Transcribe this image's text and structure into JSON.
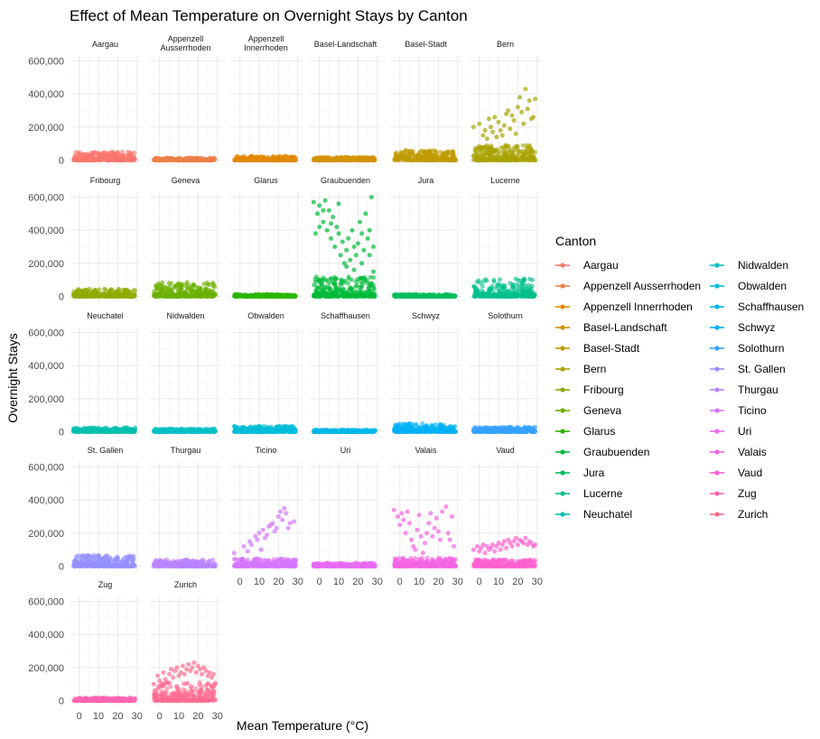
{
  "chart_data": {
    "type": "scatter",
    "title": "Effect of Mean Temperature on Overnight Stays by Canton",
    "xlabel": "Mean Temperature (°C)",
    "ylabel": "Overnight Stays",
    "xlim": [
      -5,
      32
    ],
    "ylim": [
      -30000,
      630000
    ],
    "x_ticks": [
      0,
      10,
      20,
      30
    ],
    "y_ticks": [
      0,
      200000,
      400000,
      600000
    ],
    "y_tick_labels": [
      "0",
      "200,000",
      "400,000",
      "600,000"
    ],
    "grid": true,
    "legend": {
      "title": "Canton",
      "position": "right",
      "columns": 2
    },
    "facets": [
      {
        "name": "Aargau",
        "label": [
          "Aargau"
        ],
        "color": "#F8766D",
        "base_max": 50000,
        "high": []
      },
      {
        "name": "Appenzell Ausserrhoden",
        "label": [
          "Appenzell",
          "Ausserrhoden"
        ],
        "color": "#EF7F47",
        "base_max": 15000,
        "high": []
      },
      {
        "name": "Appenzell Innerrhoden",
        "label": [
          "Appenzell",
          "Innerrhoden"
        ],
        "color": "#E38900",
        "base_max": 25000,
        "high": []
      },
      {
        "name": "Basel-Landschaft",
        "label": [
          "Basel-Landschaft"
        ],
        "color": "#D39200",
        "base_max": 18000,
        "high": []
      },
      {
        "name": "Basel-Stadt",
        "label": [
          "Basel-Stadt"
        ],
        "color": "#C09B00",
        "base_max": 60000,
        "high": []
      },
      {
        "name": "Bern",
        "label": [
          "Bern"
        ],
        "color": "#A9A400",
        "base_max": 90000,
        "high": [
          [
            -3,
            200000
          ],
          [
            0,
            220000
          ],
          [
            3,
            180000
          ],
          [
            5,
            250000
          ],
          [
            8,
            260000
          ],
          [
            10,
            230000
          ],
          [
            12,
            150000
          ],
          [
            14,
            280000
          ],
          [
            15,
            300000
          ],
          [
            17,
            270000
          ],
          [
            18,
            240000
          ],
          [
            20,
            320000
          ],
          [
            21,
            380000
          ],
          [
            22,
            290000
          ],
          [
            24,
            430000
          ],
          [
            25,
            310000
          ],
          [
            26,
            360000
          ],
          [
            28,
            260000
          ],
          [
            29,
            370000
          ],
          [
            2,
            150000
          ],
          [
            6,
            200000
          ],
          [
            9,
            140000
          ],
          [
            13,
            210000
          ],
          [
            16,
            190000
          ],
          [
            19,
            160000
          ],
          [
            23,
            220000
          ],
          [
            27,
            250000
          ],
          [
            11,
            180000
          ],
          [
            7,
            170000
          ],
          [
            4,
            130000
          ]
        ]
      },
      {
        "name": "Fribourg",
        "label": [
          "Fribourg"
        ],
        "color": "#8EAB00",
        "base_max": 45000,
        "high": []
      },
      {
        "name": "Geneva",
        "label": [
          "Geneva"
        ],
        "color": "#6BB100",
        "base_max": 85000,
        "high": []
      },
      {
        "name": "Glarus",
        "label": [
          "Glarus"
        ],
        "color": "#2AB600",
        "base_max": 12000,
        "high": []
      },
      {
        "name": "Graubuenden",
        "label": [
          "Graubuenden"
        ],
        "color": "#00BA38",
        "base_max": 120000,
        "high": [
          [
            -3,
            570000
          ],
          [
            -1,
            500000
          ],
          [
            0,
            550000
          ],
          [
            2,
            450000
          ],
          [
            3,
            580000
          ],
          [
            4,
            400000
          ],
          [
            5,
            520000
          ],
          [
            6,
            350000
          ],
          [
            7,
            480000
          ],
          [
            8,
            300000
          ],
          [
            9,
            420000
          ],
          [
            10,
            380000
          ],
          [
            11,
            250000
          ],
          [
            12,
            330000
          ],
          [
            13,
            200000
          ],
          [
            14,
            280000
          ],
          [
            15,
            350000
          ],
          [
            16,
            220000
          ],
          [
            17,
            400000
          ],
          [
            18,
            300000
          ],
          [
            19,
            250000
          ],
          [
            20,
            320000
          ],
          [
            21,
            450000
          ],
          [
            22,
            380000
          ],
          [
            23,
            280000
          ],
          [
            24,
            500000
          ],
          [
            25,
            350000
          ],
          [
            26,
            400000
          ],
          [
            27,
            600000
          ],
          [
            28,
            300000
          ],
          [
            0,
            420000
          ],
          [
            -2,
            380000
          ],
          [
            2,
            520000
          ],
          [
            6,
            440000
          ],
          [
            10,
            560000
          ],
          [
            14,
            180000
          ],
          [
            18,
            160000
          ],
          [
            22,
            200000
          ],
          [
            26,
            250000
          ],
          [
            28,
            150000
          ]
        ]
      },
      {
        "name": "Jura",
        "label": [
          "Jura"
        ],
        "color": "#00BD5C",
        "base_max": 12000,
        "high": []
      },
      {
        "name": "Lucerne",
        "label": [
          "Lucerne"
        ],
        "color": "#00BF8C",
        "base_max": 110000,
        "high": []
      },
      {
        "name": "Neuchatel",
        "label": [
          "Neuchatel"
        ],
        "color": "#00C0AF",
        "base_max": 25000,
        "high": []
      },
      {
        "name": "Nidwalden",
        "label": [
          "Nidwalden"
        ],
        "color": "#00BFC4",
        "base_max": 18000,
        "high": []
      },
      {
        "name": "Obwalden",
        "label": [
          "Obwalden"
        ],
        "color": "#00BCD8",
        "base_max": 35000,
        "high": []
      },
      {
        "name": "Schaffhausen",
        "label": [
          "Schaffhausen"
        ],
        "color": "#00B8E7",
        "base_max": 12000,
        "high": []
      },
      {
        "name": "Schwyz",
        "label": [
          "Schwyz"
        ],
        "color": "#00B0F6",
        "base_max": 50000,
        "high": []
      },
      {
        "name": "Solothurn",
        "label": [
          "Solothurn"
        ],
        "color": "#35A2FF",
        "base_max": 30000,
        "high": []
      },
      {
        "name": "St. Gallen",
        "label": [
          "St. Gallen"
        ],
        "color": "#9590FF",
        "base_max": 70000,
        "high": []
      },
      {
        "name": "Thurgau",
        "label": [
          "Thurgau"
        ],
        "color": "#B983FF",
        "base_max": 40000,
        "high": []
      },
      {
        "name": "Ticino",
        "label": [
          "Ticino"
        ],
        "color": "#D575FE",
        "base_max": 45000,
        "high": [
          [
            -3,
            80000
          ],
          [
            2,
            120000
          ],
          [
            5,
            150000
          ],
          [
            8,
            180000
          ],
          [
            10,
            200000
          ],
          [
            12,
            220000
          ],
          [
            14,
            190000
          ],
          [
            15,
            240000
          ],
          [
            17,
            260000
          ],
          [
            18,
            210000
          ],
          [
            20,
            300000
          ],
          [
            21,
            330000
          ],
          [
            22,
            280000
          ],
          [
            23,
            350000
          ],
          [
            24,
            320000
          ],
          [
            25,
            230000
          ],
          [
            26,
            260000
          ],
          [
            28,
            270000
          ],
          [
            6,
            130000
          ],
          [
            9,
            160000
          ],
          [
            13,
            170000
          ],
          [
            16,
            250000
          ],
          [
            19,
            230000
          ],
          [
            11,
            100000
          ],
          [
            4,
            90000
          ]
        ]
      },
      {
        "name": "Uri",
        "label": [
          "Uri"
        ],
        "color": "#E76BF3",
        "base_max": 20000,
        "high": []
      },
      {
        "name": "Valais",
        "label": [
          "Valais"
        ],
        "color": "#F564E3",
        "base_max": 50000,
        "high": [
          [
            -3,
            340000
          ],
          [
            -1,
            300000
          ],
          [
            0,
            250000
          ],
          [
            1,
            320000
          ],
          [
            2,
            280000
          ],
          [
            3,
            200000
          ],
          [
            4,
            330000
          ],
          [
            5,
            260000
          ],
          [
            6,
            160000
          ],
          [
            7,
            120000
          ],
          [
            8,
            100000
          ],
          [
            9,
            220000
          ],
          [
            10,
            310000
          ],
          [
            11,
            180000
          ],
          [
            12,
            80000
          ],
          [
            13,
            140000
          ],
          [
            14,
            200000
          ],
          [
            15,
            260000
          ],
          [
            16,
            320000
          ],
          [
            17,
            180000
          ],
          [
            18,
            230000
          ],
          [
            19,
            290000
          ],
          [
            20,
            210000
          ],
          [
            21,
            160000
          ],
          [
            22,
            330000
          ],
          [
            24,
            360000
          ],
          [
            25,
            200000
          ],
          [
            26,
            160000
          ],
          [
            27,
            300000
          ],
          [
            28,
            120000
          ]
        ]
      },
      {
        "name": "Vaud",
        "label": [
          "Vaud"
        ],
        "color": "#FD61D1",
        "base_max": 40000,
        "high": [
          [
            -3,
            100000
          ],
          [
            -1,
            120000
          ],
          [
            0,
            90000
          ],
          [
            1,
            110000
          ],
          [
            2,
            130000
          ],
          [
            3,
            80000
          ],
          [
            4,
            120000
          ],
          [
            5,
            100000
          ],
          [
            6,
            110000
          ],
          [
            7,
            130000
          ],
          [
            8,
            90000
          ],
          [
            9,
            120000
          ],
          [
            10,
            140000
          ],
          [
            11,
            100000
          ],
          [
            12,
            130000
          ],
          [
            13,
            150000
          ],
          [
            14,
            110000
          ],
          [
            15,
            160000
          ],
          [
            16,
            140000
          ],
          [
            17,
            120000
          ],
          [
            18,
            150000
          ],
          [
            19,
            170000
          ],
          [
            20,
            130000
          ],
          [
            21,
            160000
          ],
          [
            22,
            150000
          ],
          [
            23,
            140000
          ],
          [
            24,
            170000
          ],
          [
            25,
            130000
          ],
          [
            26,
            150000
          ],
          [
            27,
            140000
          ],
          [
            28,
            120000
          ],
          [
            29,
            130000
          ]
        ]
      },
      {
        "name": "Zug",
        "label": [
          "Zug"
        ],
        "color": "#FF64B0",
        "base_max": 18000,
        "high": []
      },
      {
        "name": "Zurich",
        "label": [
          "Zurich"
        ],
        "color": "#FF6C91",
        "base_max": 110000,
        "high": [
          [
            -3,
            100000
          ],
          [
            -1,
            150000
          ],
          [
            0,
            120000
          ],
          [
            2,
            170000
          ],
          [
            3,
            130000
          ],
          [
            5,
            160000
          ],
          [
            6,
            190000
          ],
          [
            7,
            140000
          ],
          [
            8,
            180000
          ],
          [
            9,
            200000
          ],
          [
            10,
            150000
          ],
          [
            11,
            170000
          ],
          [
            12,
            210000
          ],
          [
            13,
            160000
          ],
          [
            14,
            190000
          ],
          [
            15,
            220000
          ],
          [
            16,
            180000
          ],
          [
            17,
            200000
          ],
          [
            18,
            230000
          ],
          [
            19,
            170000
          ],
          [
            20,
            210000
          ],
          [
            21,
            190000
          ],
          [
            22,
            160000
          ],
          [
            23,
            200000
          ],
          [
            24,
            180000
          ],
          [
            25,
            150000
          ],
          [
            26,
            170000
          ],
          [
            27,
            140000
          ],
          [
            28,
            160000
          ],
          [
            4,
            110000
          ]
        ]
      }
    ]
  }
}
